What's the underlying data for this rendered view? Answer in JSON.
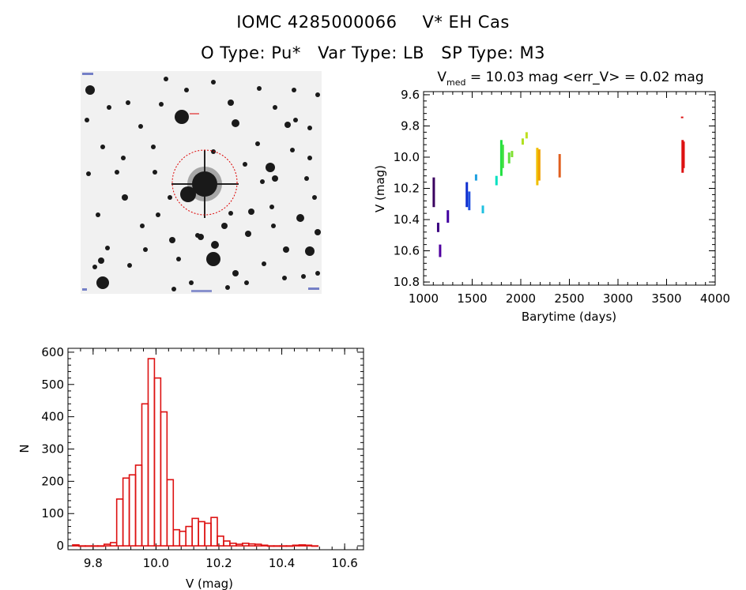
{
  "header": {
    "source_id": "IOMC 4285000066",
    "star_name": "V* EH Cas",
    "otype_label": "O Type:",
    "otype_value": "Pu*",
    "vartype_label": "Var Type:",
    "vartype_value": "LB",
    "sptype_label": "SP Type:",
    "sptype_value": "M3"
  },
  "colors": {
    "histogram": "#dd1111",
    "circle": "#dd0000",
    "sky_background": "#f1f1f1"
  },
  "chart_data": [
    {
      "type": "scatter",
      "name": "light-curve",
      "title_main": "V",
      "title_sub": "med",
      "title_rest": " = 10.03 mag <err_V> = 0.02 mag",
      "xlabel": "Barytime (days)",
      "ylabel": "V (mag)",
      "xlim": [
        1000,
        4000
      ],
      "ylim": [
        9.58,
        10.82
      ],
      "y_inverted": true,
      "xticks": [
        1000,
        1500,
        2000,
        2500,
        3000,
        3500,
        4000
      ],
      "yticks": [
        9.6,
        9.8,
        10.0,
        10.2,
        10.4,
        10.6,
        10.8
      ],
      "segments": [
        {
          "x": 1105,
          "ymin": 10.13,
          "ymax": 10.32,
          "color": "#3a0060"
        },
        {
          "x": 1150,
          "ymin": 10.42,
          "ymax": 10.48,
          "color": "#3a0080"
        },
        {
          "x": 1170,
          "ymin": 10.56,
          "ymax": 10.64,
          "color": "#5000a0"
        },
        {
          "x": 1250,
          "ymin": 10.34,
          "ymax": 10.42,
          "color": "#4000a0"
        },
        {
          "x": 1445,
          "ymin": 10.16,
          "ymax": 10.32,
          "color": "#1030d0"
        },
        {
          "x": 1470,
          "ymin": 10.22,
          "ymax": 10.34,
          "color": "#2050e0"
        },
        {
          "x": 1540,
          "ymin": 10.11,
          "ymax": 10.15,
          "color": "#20a0e0"
        },
        {
          "x": 1610,
          "ymin": 10.31,
          "ymax": 10.36,
          "color": "#20c0e0"
        },
        {
          "x": 1750,
          "ymin": 10.12,
          "ymax": 10.18,
          "color": "#00e0c0"
        },
        {
          "x": 1800,
          "ymin": 9.89,
          "ymax": 10.12,
          "color": "#20e040"
        },
        {
          "x": 1815,
          "ymin": 9.92,
          "ymax": 10.07,
          "color": "#40e040"
        },
        {
          "x": 1880,
          "ymin": 9.97,
          "ymax": 10.04,
          "color": "#60e040"
        },
        {
          "x": 1910,
          "ymin": 9.96,
          "ymax": 10.0,
          "color": "#80e030"
        },
        {
          "x": 2020,
          "ymin": 9.88,
          "ymax": 9.92,
          "color": "#b0e020"
        },
        {
          "x": 2060,
          "ymin": 9.84,
          "ymax": 9.88,
          "color": "#c0e020"
        },
        {
          "x": 2170,
          "ymin": 9.94,
          "ymax": 10.18,
          "color": "#f0c000"
        },
        {
          "x": 2190,
          "ymin": 9.95,
          "ymax": 10.15,
          "color": "#f0a000"
        },
        {
          "x": 2400,
          "ymin": 9.98,
          "ymax": 10.13,
          "color": "#e06020"
        },
        {
          "x": 3660,
          "ymin": 9.74,
          "ymax": 9.75,
          "color": "#dd1111"
        },
        {
          "x": 3665,
          "ymin": 9.89,
          "ymax": 10.1,
          "color": "#dd1111"
        },
        {
          "x": 3675,
          "ymin": 9.9,
          "ymax": 10.07,
          "color": "#dd1111"
        }
      ]
    },
    {
      "type": "bar",
      "name": "magnitude-histogram",
      "xlabel": "V (mag)",
      "ylabel": "N",
      "xlim": [
        9.72,
        10.66
      ],
      "ylim": [
        -12,
        612
      ],
      "xticks": [
        9.8,
        10.0,
        10.2,
        10.4,
        10.6
      ],
      "yticks": [
        0,
        100,
        200,
        300,
        400,
        500,
        600
      ],
      "bin_width": 0.02,
      "bin_start": 9.735,
      "counts": [
        3,
        0,
        0,
        0,
        0,
        5,
        10,
        145,
        210,
        220,
        250,
        440,
        580,
        520,
        415,
        205,
        50,
        45,
        60,
        85,
        75,
        70,
        88,
        30,
        15,
        8,
        5,
        8,
        6,
        5,
        2,
        0,
        0,
        0,
        0,
        2,
        3,
        2,
        0
      ]
    }
  ]
}
